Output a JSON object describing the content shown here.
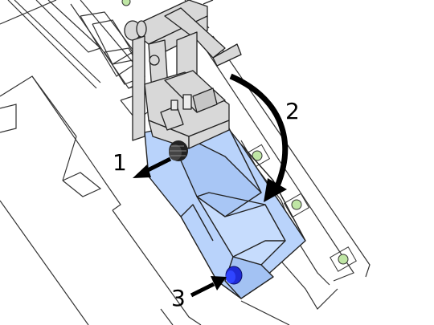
{
  "callouts": {
    "one": "1",
    "two": "2",
    "three": "3"
  },
  "colors": {
    "tray_fill": "#b9d3fb",
    "hardware_fill": "#d8d8d8",
    "outline": "#222222",
    "led_green": "#bfe6a5",
    "knob_blue": "#1f2bd6",
    "knob_dark": "#222222"
  },
  "icons": {
    "arrow_1": "arrow-left-down-icon",
    "arrow_2": "curved-arrow-icon",
    "arrow_3": "arrow-right-up-icon",
    "knob_1": "dark-knurled-knob-icon",
    "knob_3": "blue-knob-icon"
  }
}
